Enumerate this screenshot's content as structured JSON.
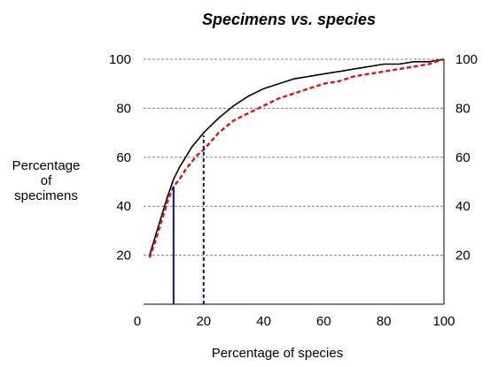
{
  "chart_data": {
    "type": "line",
    "title": "Specimens vs. species",
    "xlabel": "Percentage of species",
    "ylabel_lines": [
      "Percentage",
      "of",
      "specimens"
    ],
    "xlim": [
      0,
      100
    ],
    "ylim": [
      0,
      100
    ],
    "x_ticks": [
      "0",
      "20",
      "40",
      "60",
      "80",
      "100"
    ],
    "y_ticks_left": [
      "20",
      "40",
      "60",
      "80",
      "100"
    ],
    "y_ticks_right": [
      "20",
      "40",
      "60",
      "80",
      "100"
    ],
    "grid": "horizontal dashed",
    "colors": {
      "series1": "#000000",
      "series2": "#e0120f",
      "marker1": "#0a14a0",
      "marker2": "#0a14a0"
    },
    "series": [
      {
        "line_style": "solid",
        "x": [
          2,
          4,
          6,
          8,
          10,
          12,
          14,
          16,
          18,
          20,
          25,
          30,
          35,
          40,
          45,
          50,
          55,
          60,
          65,
          70,
          75,
          80,
          85,
          90,
          95,
          100
        ],
        "values": [
          20,
          28,
          36,
          44,
          51,
          56,
          60,
          64,
          67,
          70,
          76,
          81,
          85,
          88,
          90,
          92,
          93,
          94,
          95,
          96,
          97,
          98,
          98,
          99,
          99,
          100
        ]
      },
      {
        "line_style": "dashed",
        "x": [
          2,
          4,
          6,
          8,
          10,
          12,
          14,
          16,
          18,
          20,
          25,
          30,
          35,
          40,
          45,
          50,
          55,
          60,
          65,
          70,
          75,
          80,
          85,
          90,
          95,
          100
        ],
        "values": [
          19,
          26,
          34,
          42,
          48,
          51,
          55,
          58,
          61,
          63,
          70,
          75,
          78,
          81,
          84,
          86,
          88,
          90,
          91,
          93,
          94,
          95,
          96,
          97,
          98,
          100
        ]
      }
    ],
    "markers": [
      {
        "line_style": "solid",
        "x": 10,
        "y": 48
      },
      {
        "line_style": "dashed",
        "x": 20,
        "y": 69
      }
    ]
  }
}
